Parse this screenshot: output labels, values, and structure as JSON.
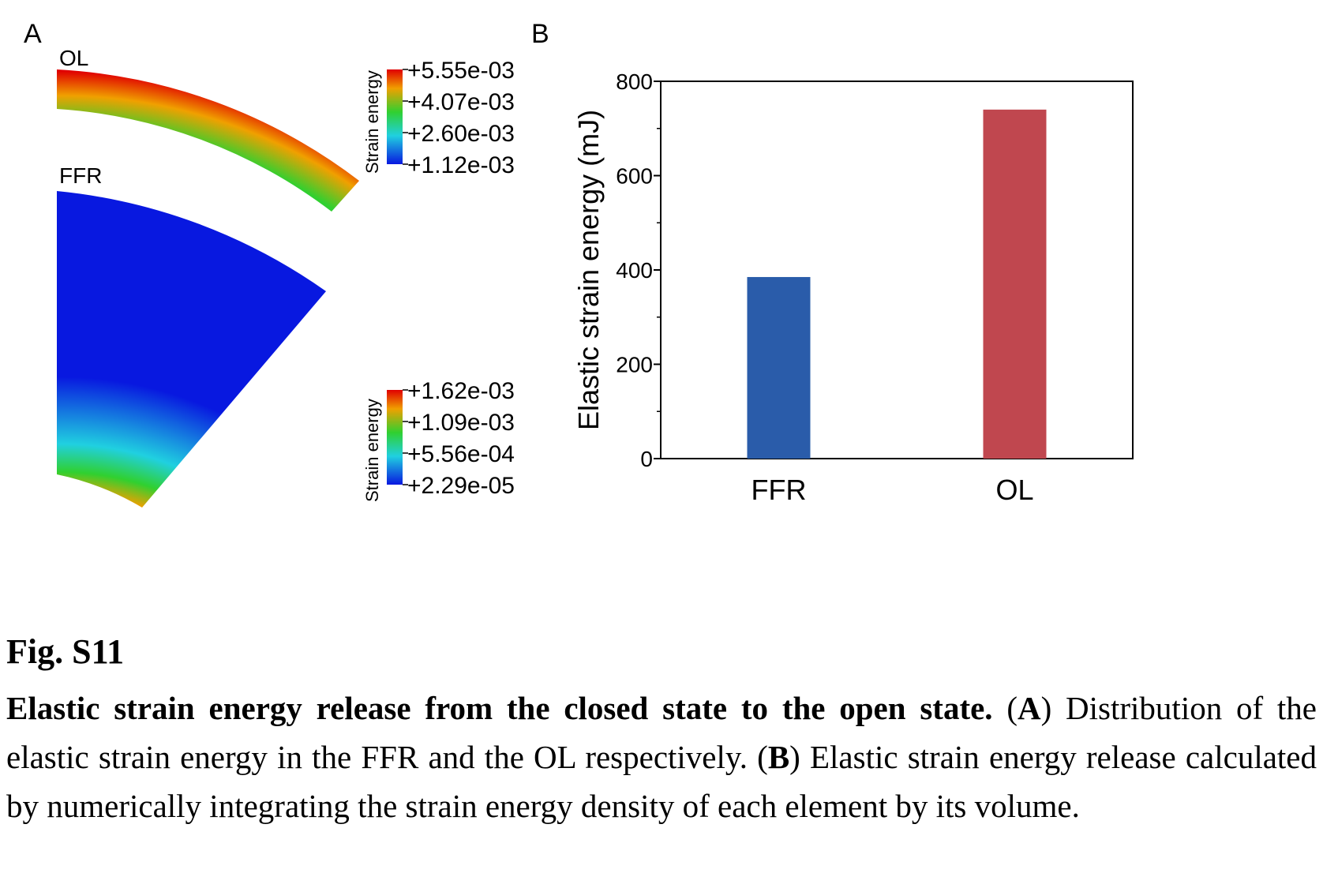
{
  "panel_a": {
    "label": "A",
    "ol_label": "OL",
    "ffr_label": "FFR",
    "colorbar_top": {
      "title": "Strain energy",
      "ticks": [
        "+5.55e-03",
        "+4.07e-03",
        "+2.60e-03",
        "+1.12e-03"
      ]
    },
    "colorbar_bottom": {
      "title": "Strain energy",
      "ticks": [
        "+1.62e-03",
        "+1.09e-03",
        "+5.56e-04",
        "+2.29e-05"
      ]
    },
    "colors": {
      "max": "#e00000",
      "high": "#f0a000",
      "mid": "#30d030",
      "low": "#20d0e0",
      "min": "#0818e0"
    }
  },
  "panel_b": {
    "label": "B",
    "colors": {
      "FFR": "#2a5caa",
      "OL": "#c0474f"
    }
  },
  "chart_data": {
    "type": "bar",
    "categories": [
      "FFR",
      "OL"
    ],
    "values": [
      385,
      740
    ],
    "ylabel": "Elastic strain energy (mJ)",
    "xlabel": "",
    "ylim": [
      0,
      800
    ],
    "yticks": [
      0,
      200,
      400,
      600,
      800
    ],
    "grid": false,
    "legend": "none"
  },
  "caption": {
    "figure_number": "Fig. S11",
    "title": "Elastic strain energy release from the closed state to the open state.",
    "part_a_label": "A",
    "part_a_text": "Distribution of the elastic strain energy in the FFR and the OL respectively.",
    "part_b_label": "B",
    "part_b_text": "Elastic strain energy release calculated by numerically integrating the strain energy density of each element by its volume."
  }
}
